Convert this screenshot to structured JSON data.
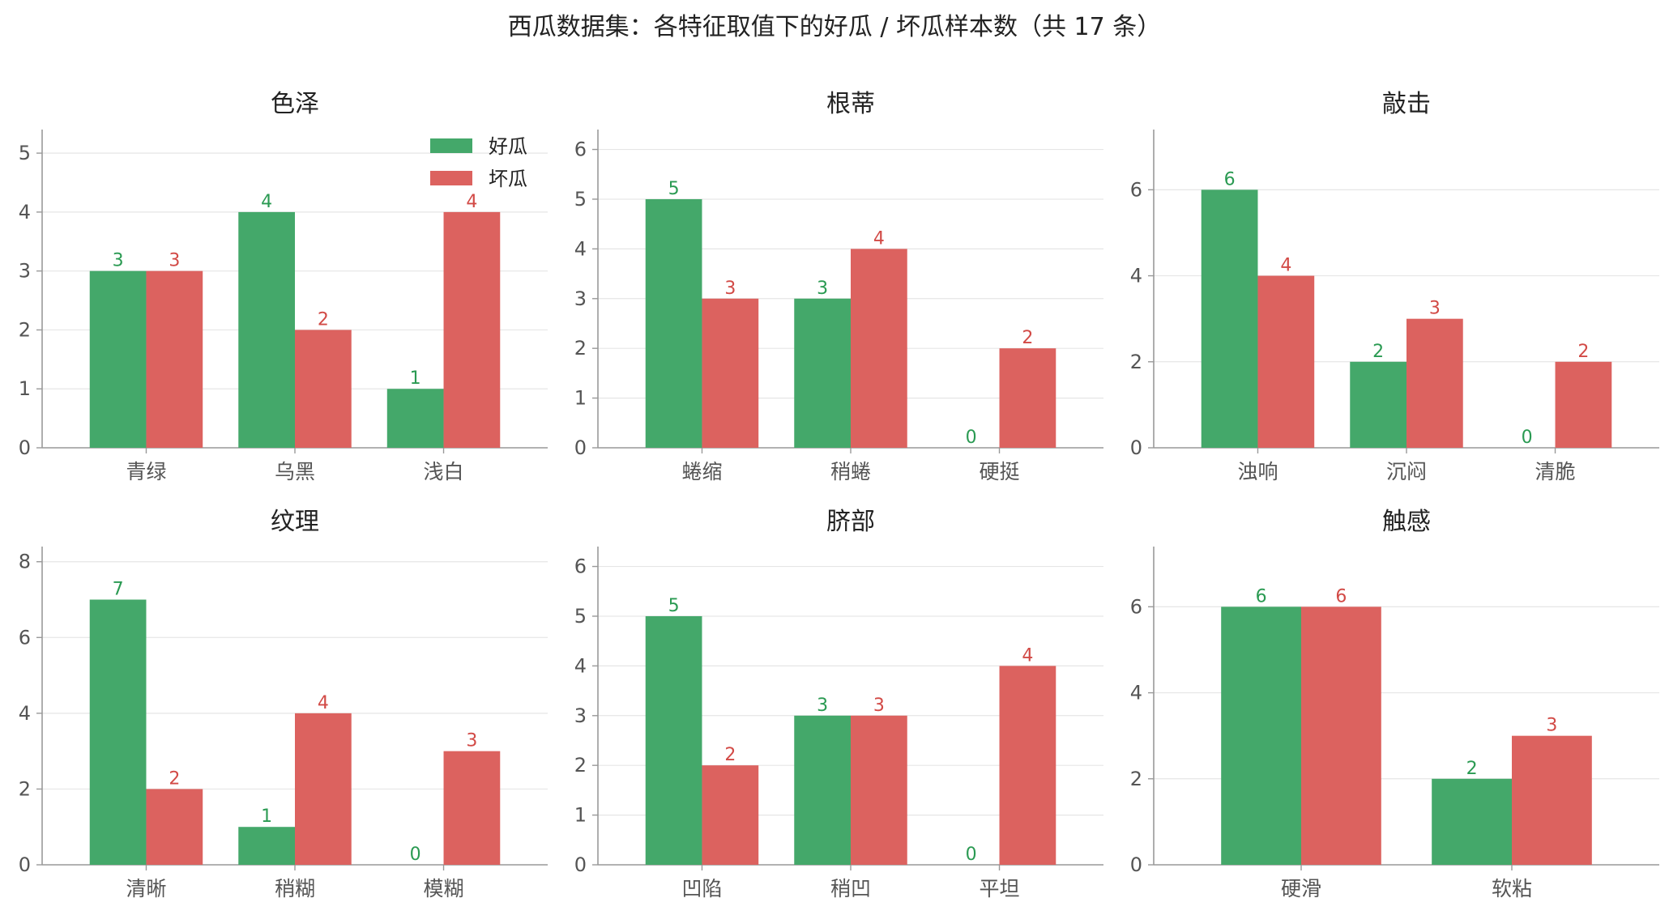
{
  "figure": {
    "title": "西瓜数据集：各特征取值下的好瓜 / 坏瓜样本数（共 17 条）"
  },
  "colors": {
    "good": "#44a86a",
    "bad": "#dc625f",
    "good_text": "#2a9a52",
    "bad_text": "#d24a46"
  },
  "legend": {
    "placement": "upper right of first panel",
    "items": [
      "好瓜",
      "坏瓜"
    ]
  },
  "chart_data": [
    {
      "type": "bar",
      "title": "色泽",
      "categories": [
        "青绿",
        "乌黑",
        "浅白"
      ],
      "series": [
        {
          "name": "好瓜",
          "values": [
            3,
            4,
            1
          ]
        },
        {
          "name": "坏瓜",
          "values": [
            3,
            2,
            4
          ]
        }
      ],
      "ylim": [
        0,
        5.4
      ],
      "yticks": [
        0,
        1,
        2,
        3,
        4,
        5
      ],
      "grid": "y"
    },
    {
      "type": "bar",
      "title": "根蒂",
      "categories": [
        "蜷缩",
        "稍蜷",
        "硬挺"
      ],
      "series": [
        {
          "name": "好瓜",
          "values": [
            5,
            3,
            0
          ]
        },
        {
          "name": "坏瓜",
          "values": [
            3,
            4,
            2
          ]
        }
      ],
      "ylim": [
        0,
        6.4
      ],
      "yticks": [
        0,
        1,
        2,
        3,
        4,
        5,
        6
      ],
      "grid": "y"
    },
    {
      "type": "bar",
      "title": "敲击",
      "categories": [
        "浊响",
        "沉闷",
        "清脆"
      ],
      "series": [
        {
          "name": "好瓜",
          "values": [
            6,
            2,
            0
          ]
        },
        {
          "name": "坏瓜",
          "values": [
            4,
            3,
            2
          ]
        }
      ],
      "ylim": [
        0,
        7.4
      ],
      "yticks": [
        0,
        2,
        4,
        6
      ],
      "grid": "y"
    },
    {
      "type": "bar",
      "title": "纹理",
      "categories": [
        "清晰",
        "稍糊",
        "模糊"
      ],
      "series": [
        {
          "name": "好瓜",
          "values": [
            7,
            1,
            0
          ]
        },
        {
          "name": "坏瓜",
          "values": [
            2,
            4,
            3
          ]
        }
      ],
      "ylim": [
        0,
        8.4
      ],
      "yticks": [
        0,
        2,
        4,
        6,
        8
      ],
      "grid": "y"
    },
    {
      "type": "bar",
      "title": "脐部",
      "categories": [
        "凹陷",
        "稍凹",
        "平坦"
      ],
      "series": [
        {
          "name": "好瓜",
          "values": [
            5,
            3,
            0
          ]
        },
        {
          "name": "坏瓜",
          "values": [
            2,
            3,
            4
          ]
        }
      ],
      "ylim": [
        0,
        6.4
      ],
      "yticks": [
        0,
        1,
        2,
        3,
        4,
        5,
        6
      ],
      "grid": "y"
    },
    {
      "type": "bar",
      "title": "触感",
      "categories": [
        "硬滑",
        "软粘"
      ],
      "series": [
        {
          "name": "好瓜",
          "values": [
            6,
            2
          ]
        },
        {
          "name": "坏瓜",
          "values": [
            6,
            3
          ]
        }
      ],
      "ylim": [
        0,
        7.4
      ],
      "yticks": [
        0,
        2,
        4,
        6
      ],
      "grid": "y"
    }
  ]
}
